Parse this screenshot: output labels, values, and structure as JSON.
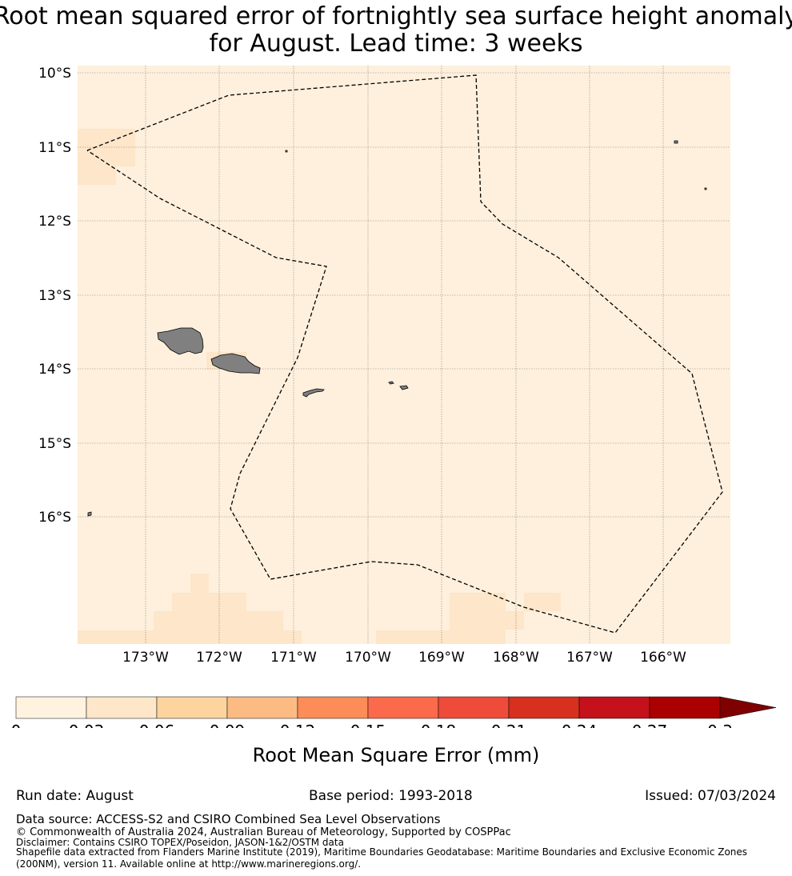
{
  "title_line1": "Root mean squared error of fortnightly sea surface height anomaly",
  "title_line2": "for August. Lead time: 3 weeks",
  "map": {
    "lat_labels": [
      "10°S",
      "11°S",
      "12°S",
      "13°S",
      "14°S",
      "15°S",
      "16°S"
    ],
    "lon_labels": [
      "173°W",
      "172°W",
      "171°W",
      "170°W",
      "169°W",
      "168°W",
      "167°W",
      "166°W"
    ],
    "background_color": "#fef0dd",
    "high_cell_color": "#fde6c9",
    "land_color": "#808080"
  },
  "colorbar": {
    "ticks": [
      "0",
      "0.03",
      "0.06",
      "0.09",
      "0.12",
      "0.15",
      "0.18",
      "0.21",
      "0.24",
      "0.27",
      "0.3"
    ],
    "colors": [
      "#fff3e0",
      "#fee6c8",
      "#fdd49e",
      "#fdbb84",
      "#fc8d59",
      "#fb6a4a",
      "#ef4b3a",
      "#d7301f",
      "#c4111b",
      "#ab0000",
      "#7f0000"
    ],
    "extend": "max",
    "label": "Root Mean Square Error (mm)"
  },
  "meta": {
    "run_date": "Run date: August",
    "base_period": "Base period: 1993-2018",
    "issued": "Issued: 07/03/2024"
  },
  "footer": {
    "data_source": "Data source: ACCESS-S2 and CSIRO Combined Sea Level Observations",
    "copyright": "© Commonwealth of Australia 2024, Australian Bureau of Meteorology, Supported by COSPPac",
    "disclaimer": "Disclaimer: Contains CSIRO TOPEX/Poseidon, JASON-1&2/OSTM data",
    "shapefile": "Shapefile data extracted from Flanders Marine Institute (2019), Maritime Boundaries Geodatabase: Maritime Boundaries and Exclusive Economic Zones (200NM), version 11. Available online at http://www.marineregions.org/."
  }
}
